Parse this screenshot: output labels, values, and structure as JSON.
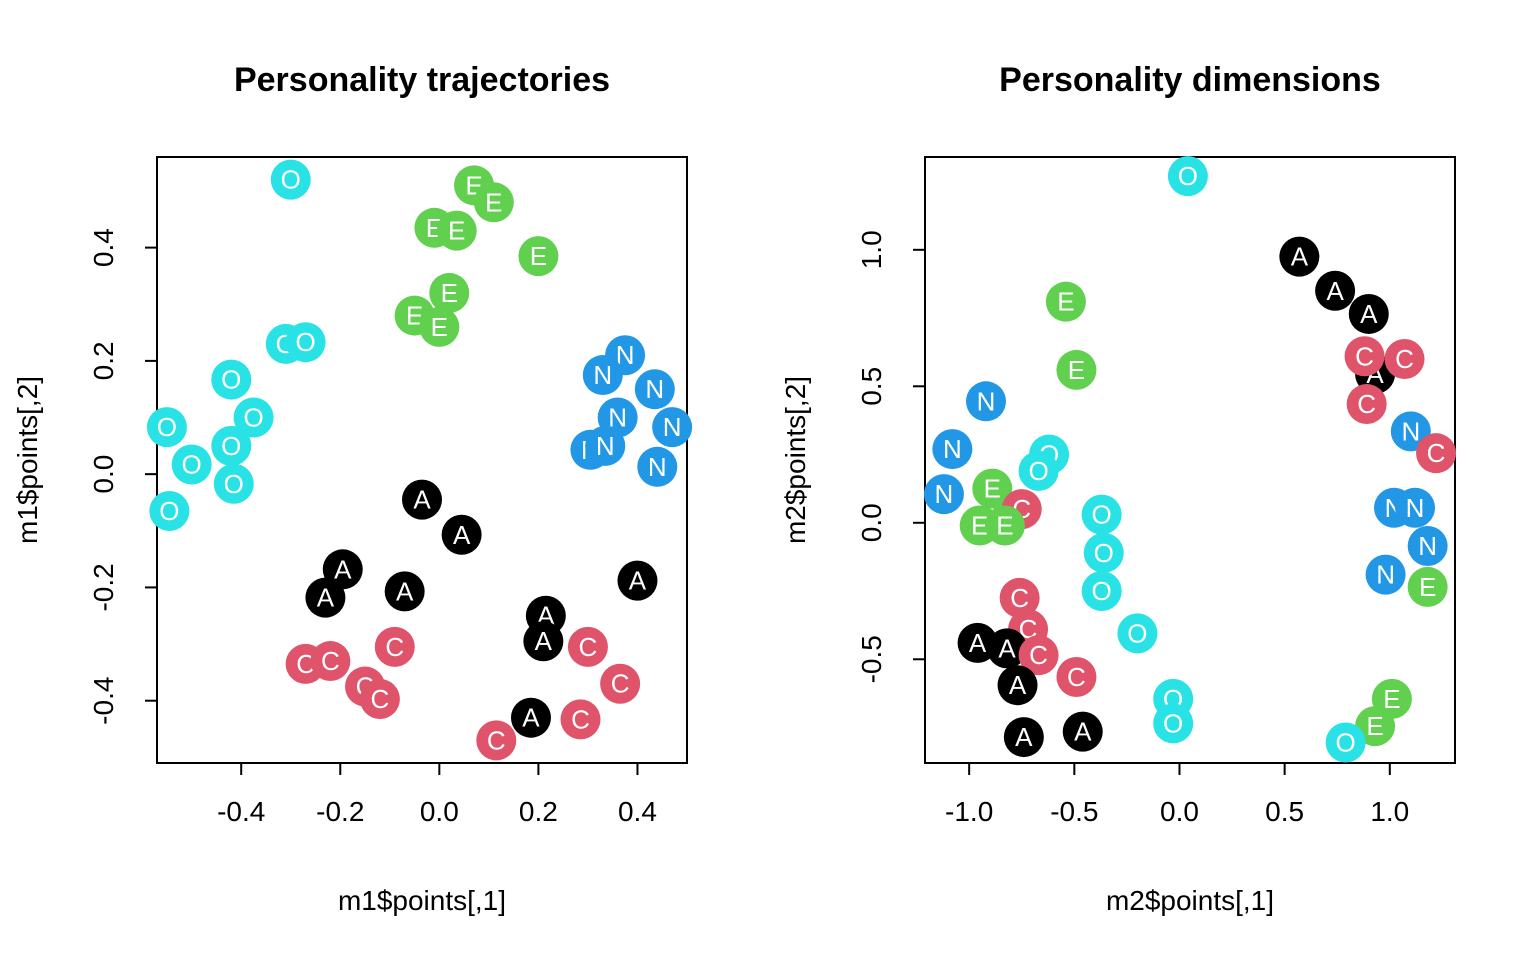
{
  "colors": {
    "A": "#000000",
    "C": "#df536b",
    "E": "#61d04f",
    "N": "#2297e6",
    "O": "#28e2e5"
  },
  "chart_data": [
    {
      "type": "scatter",
      "title": "Personality trajectories",
      "xlabel": "m1$points[,1]",
      "ylabel": "m1$points[,2]",
      "xlim": [
        -0.57,
        0.5
      ],
      "ylim": [
        -0.51,
        0.56
      ],
      "xticks": [
        -0.4,
        -0.2,
        0.0,
        0.2,
        0.4
      ],
      "xtick_labels": [
        "-0.4",
        "-0.2",
        "0.0",
        "0.2",
        "0.4"
      ],
      "yticks": [
        -0.4,
        -0.2,
        0.0,
        0.2,
        0.4
      ],
      "ytick_labels": [
        "-0.4",
        "-0.2",
        "0.0",
        "0.2",
        "0.4"
      ],
      "points": [
        {
          "x": -0.3,
          "y": 0.52,
          "label": "O"
        },
        {
          "x": 0.07,
          "y": 0.51,
          "label": "E"
        },
        {
          "x": 0.11,
          "y": 0.48,
          "label": "E"
        },
        {
          "x": -0.01,
          "y": 0.435,
          "label": "E"
        },
        {
          "x": 0.035,
          "y": 0.43,
          "label": "E"
        },
        {
          "x": 0.2,
          "y": 0.385,
          "label": "E"
        },
        {
          "x": 0.02,
          "y": 0.32,
          "label": "E"
        },
        {
          "x": -0.05,
          "y": 0.28,
          "label": "E"
        },
        {
          "x": 0.0,
          "y": 0.26,
          "label": "E"
        },
        {
          "x": -0.31,
          "y": 0.23,
          "label": "O"
        },
        {
          "x": -0.27,
          "y": 0.233,
          "label": "O"
        },
        {
          "x": -0.42,
          "y": 0.167,
          "label": "O"
        },
        {
          "x": -0.375,
          "y": 0.1,
          "label": "O"
        },
        {
          "x": -0.55,
          "y": 0.083,
          "label": "O"
        },
        {
          "x": -0.42,
          "y": 0.05,
          "label": "O"
        },
        {
          "x": -0.5,
          "y": 0.017,
          "label": "O"
        },
        {
          "x": -0.415,
          "y": -0.017,
          "label": "O"
        },
        {
          "x": -0.545,
          "y": -0.065,
          "label": "O"
        },
        {
          "x": 0.375,
          "y": 0.21,
          "label": "N"
        },
        {
          "x": 0.33,
          "y": 0.175,
          "label": "N"
        },
        {
          "x": 0.435,
          "y": 0.15,
          "label": "N"
        },
        {
          "x": 0.36,
          "y": 0.1,
          "label": "N"
        },
        {
          "x": 0.47,
          "y": 0.083,
          "label": "N"
        },
        {
          "x": 0.305,
          "y": 0.043,
          "label": "N"
        },
        {
          "x": 0.335,
          "y": 0.05,
          "label": "N"
        },
        {
          "x": 0.44,
          "y": 0.013,
          "label": "N"
        },
        {
          "x": -0.035,
          "y": -0.045,
          "label": "A"
        },
        {
          "x": 0.045,
          "y": -0.107,
          "label": "A"
        },
        {
          "x": -0.195,
          "y": -0.168,
          "label": "A"
        },
        {
          "x": -0.07,
          "y": -0.207,
          "label": "A"
        },
        {
          "x": -0.23,
          "y": -0.218,
          "label": "A"
        },
        {
          "x": 0.4,
          "y": -0.188,
          "label": "A"
        },
        {
          "x": 0.215,
          "y": -0.25,
          "label": "A"
        },
        {
          "x": 0.21,
          "y": -0.295,
          "label": "A"
        },
        {
          "x": 0.185,
          "y": -0.43,
          "label": "A"
        },
        {
          "x": -0.09,
          "y": -0.305,
          "label": "C"
        },
        {
          "x": -0.27,
          "y": -0.335,
          "label": "C"
        },
        {
          "x": -0.22,
          "y": -0.33,
          "label": "C"
        },
        {
          "x": 0.3,
          "y": -0.305,
          "label": "C"
        },
        {
          "x": 0.365,
          "y": -0.37,
          "label": "C"
        },
        {
          "x": -0.15,
          "y": -0.375,
          "label": "C"
        },
        {
          "x": -0.12,
          "y": -0.397,
          "label": "C"
        },
        {
          "x": 0.285,
          "y": -0.433,
          "label": "C"
        },
        {
          "x": 0.115,
          "y": -0.47,
          "label": "C"
        }
      ]
    },
    {
      "type": "scatter",
      "title": "Personality dimensions",
      "xlabel": "m2$points[,1]",
      "ylabel": "m2$points[,2]",
      "xlim": [
        -1.21,
        1.31
      ],
      "ylim": [
        -0.88,
        1.34
      ],
      "xticks": [
        -1.0,
        -0.5,
        0.0,
        0.5,
        1.0
      ],
      "xtick_labels": [
        "-1.0",
        "-0.5",
        "0.0",
        "0.5",
        "1.0"
      ],
      "yticks": [
        -0.5,
        0.0,
        0.5,
        1.0
      ],
      "ytick_labels": [
        "-0.5",
        "0.0",
        "0.5",
        "1.0"
      ],
      "points": [
        {
          "x": 0.04,
          "y": 1.27,
          "label": "O"
        },
        {
          "x": 0.57,
          "y": 0.975,
          "label": "A"
        },
        {
          "x": 0.74,
          "y": 0.85,
          "label": "A"
        },
        {
          "x": 0.9,
          "y": 0.765,
          "label": "A"
        },
        {
          "x": -0.54,
          "y": 0.81,
          "label": "E"
        },
        {
          "x": -0.49,
          "y": 0.56,
          "label": "E"
        },
        {
          "x": 0.93,
          "y": 0.545,
          "label": "A"
        },
        {
          "x": 0.88,
          "y": 0.61,
          "label": "C"
        },
        {
          "x": 1.07,
          "y": 0.6,
          "label": "C"
        },
        {
          "x": 0.89,
          "y": 0.435,
          "label": "C"
        },
        {
          "x": -0.92,
          "y": 0.445,
          "label": "N"
        },
        {
          "x": 1.1,
          "y": 0.335,
          "label": "N"
        },
        {
          "x": 1.22,
          "y": 0.255,
          "label": "C"
        },
        {
          "x": -1.08,
          "y": 0.27,
          "label": "N"
        },
        {
          "x": -0.62,
          "y": 0.25,
          "label": "O"
        },
        {
          "x": -0.67,
          "y": 0.19,
          "label": "O"
        },
        {
          "x": -1.12,
          "y": 0.105,
          "label": "N"
        },
        {
          "x": -0.89,
          "y": 0.125,
          "label": "E"
        },
        {
          "x": -0.75,
          "y": 0.05,
          "label": "C"
        },
        {
          "x": -0.95,
          "y": -0.01,
          "label": "E"
        },
        {
          "x": -0.83,
          "y": -0.01,
          "label": "E"
        },
        {
          "x": -0.37,
          "y": 0.03,
          "label": "O"
        },
        {
          "x": 1.02,
          "y": 0.055,
          "label": "N"
        },
        {
          "x": 1.12,
          "y": 0.055,
          "label": "N"
        },
        {
          "x": 1.18,
          "y": -0.085,
          "label": "N"
        },
        {
          "x": -0.36,
          "y": -0.11,
          "label": "O"
        },
        {
          "x": 0.98,
          "y": -0.19,
          "label": "N"
        },
        {
          "x": 1.18,
          "y": -0.235,
          "label": "E"
        },
        {
          "x": -0.37,
          "y": -0.25,
          "label": "O"
        },
        {
          "x": -0.76,
          "y": -0.275,
          "label": "C"
        },
        {
          "x": -0.2,
          "y": -0.405,
          "label": "O"
        },
        {
          "x": -0.72,
          "y": -0.39,
          "label": "C"
        },
        {
          "x": -0.96,
          "y": -0.44,
          "label": "A"
        },
        {
          "x": -0.82,
          "y": -0.46,
          "label": "A"
        },
        {
          "x": -0.67,
          "y": -0.485,
          "label": "C"
        },
        {
          "x": -0.49,
          "y": -0.565,
          "label": "C"
        },
        {
          "x": -0.77,
          "y": -0.595,
          "label": "A"
        },
        {
          "x": -0.03,
          "y": -0.645,
          "label": "O"
        },
        {
          "x": 1.01,
          "y": -0.645,
          "label": "E"
        },
        {
          "x": -0.03,
          "y": -0.735,
          "label": "O"
        },
        {
          "x": 0.93,
          "y": -0.745,
          "label": "E"
        },
        {
          "x": -0.74,
          "y": -0.785,
          "label": "A"
        },
        {
          "x": -0.46,
          "y": -0.765,
          "label": "A"
        },
        {
          "x": 0.79,
          "y": -0.805,
          "label": "O"
        }
      ]
    }
  ]
}
